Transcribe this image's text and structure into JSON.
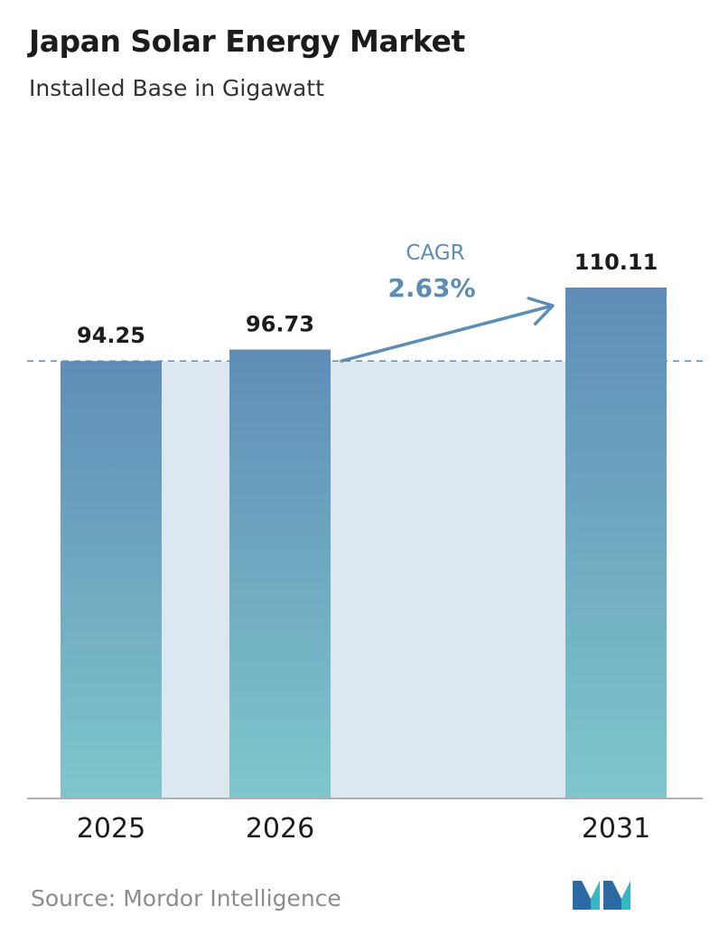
{
  "title": "Japan Solar Energy Market",
  "subtitle": "Installed Base in Gigawatt",
  "source": "Source:  Mordor Intelligence",
  "colors": {
    "bar_top": "#5f8db7",
    "bar_bottom": "#7fc6cb",
    "band": "#dde7f0",
    "annotation": "#5b8db5",
    "axis": "#b0b0b0",
    "dashed_line": "#5b8db5"
  },
  "chart_data": {
    "type": "bar",
    "categories": [
      "2025",
      "2026",
      "2031"
    ],
    "values": [
      94.25,
      96.73,
      110.11
    ],
    "value_labels": [
      "94.25",
      "96.73",
      "110.11"
    ],
    "annotation": {
      "label": "CAGR",
      "value": "2.63%"
    },
    "ylim": [
      0,
      110.11
    ],
    "grid": false,
    "legend": "none"
  }
}
